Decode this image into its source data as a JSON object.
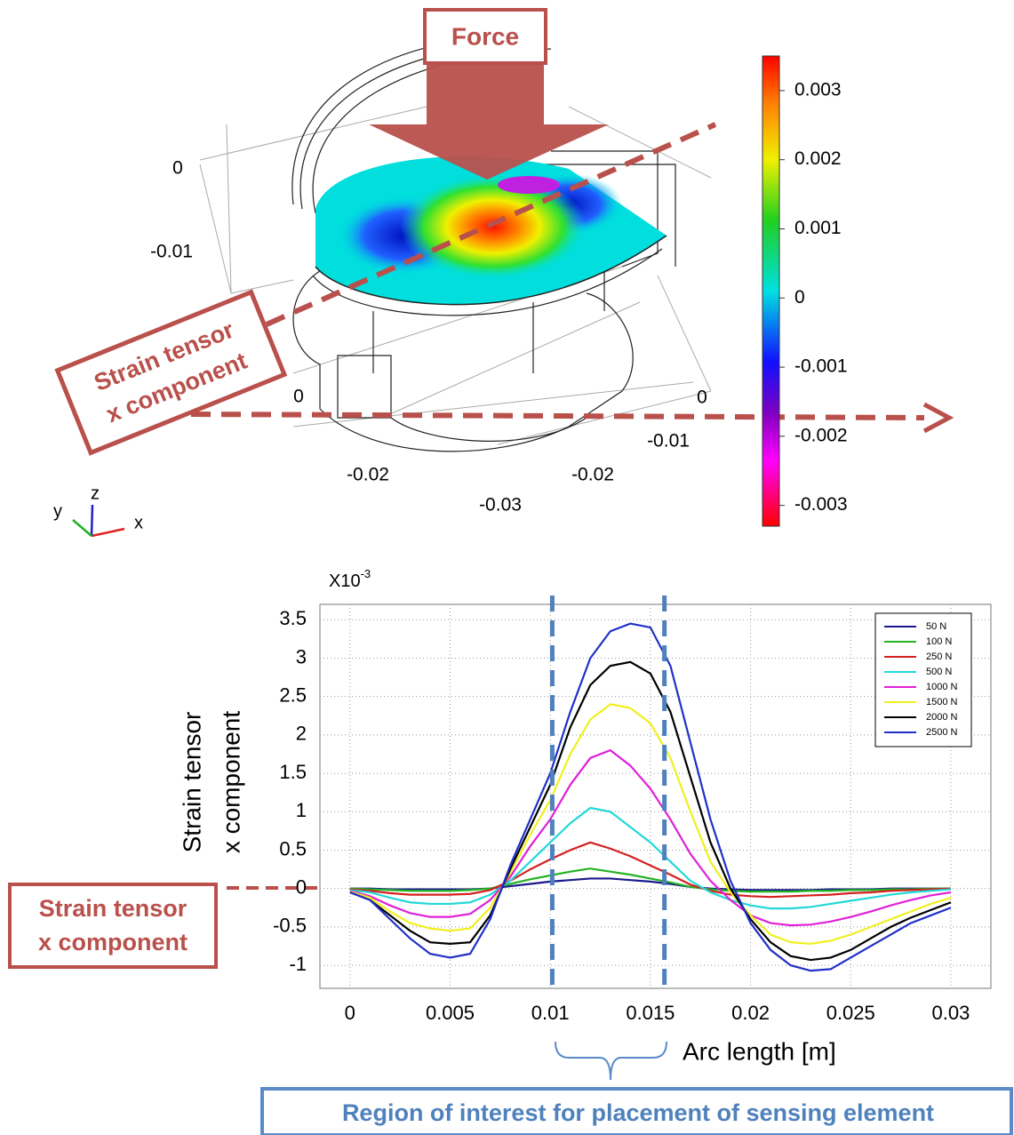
{
  "figure": {
    "force_label": "Force",
    "strain_annotation": [
      "Strain tensor",
      "x component"
    ],
    "axis_labels": [
      0,
      -0.01,
      0,
      -0.02,
      -0.03,
      -0.02,
      -0.01,
      0
    ],
    "triad": [
      "y",
      "z",
      "x"
    ],
    "colorbar": {
      "lim": [
        -0.0033,
        0.0035
      ],
      "ticks": [
        0.003,
        0.002,
        0.001,
        0,
        -0.001,
        -0.002,
        -0.003
      ]
    }
  },
  "chart_data": {
    "type": "line",
    "y_multiplier": {
      "base": "X10",
      "exponent": "-3"
    },
    "y_label": [
      "Strain tensor",
      "x component"
    ],
    "x_label": "Arc length [m]",
    "xlim": [
      -0.0015,
      0.032
    ],
    "ylim": [
      -1.3,
      3.7
    ],
    "xticks": [
      0,
      0.005,
      0.01,
      0.015,
      0.02,
      0.025,
      0.03
    ],
    "yticks": [
      -1,
      -0.5,
      0,
      0.5,
      1,
      1.5,
      2,
      2.5,
      3,
      3.5
    ],
    "grid": true,
    "legend": "upper right",
    "highlight_x": [
      0.0101,
      0.0157
    ],
    "annotation": [
      "Strain tensor",
      "x component"
    ],
    "region_label": "Region of interest for placement of sensing element",
    "x": [
      0,
      0.001,
      0.002,
      0.003,
      0.004,
      0.005,
      0.006,
      0.007,
      0.008,
      0.009,
      0.01,
      0.011,
      0.012,
      0.013,
      0.014,
      0.015,
      0.016,
      0.017,
      0.018,
      0.019,
      0.02,
      0.021,
      0.022,
      0.023,
      0.024,
      0.025,
      0.026,
      0.027,
      0.028,
      0.029,
      0.03
    ],
    "series": [
      {
        "name": "50 N",
        "color": "#1a1a8c",
        "values": [
          0,
          0,
          -0.01,
          -0.01,
          -0.01,
          -0.01,
          -0.01,
          0,
          0.03,
          0.06,
          0.09,
          0.11,
          0.13,
          0.13,
          0.11,
          0.09,
          0.06,
          0.02,
          0,
          -0.01,
          -0.02,
          -0.02,
          -0.02,
          -0.02,
          -0.01,
          -0.01,
          -0.01,
          0,
          0,
          0,
          0
        ]
      },
      {
        "name": "100 N",
        "color": "#22b422",
        "values": [
          0,
          -0.01,
          -0.02,
          -0.03,
          -0.03,
          -0.03,
          -0.02,
          0,
          0.06,
          0.12,
          0.17,
          0.22,
          0.26,
          0.22,
          0.18,
          0.13,
          0.08,
          0.02,
          -0.01,
          -0.03,
          -0.04,
          -0.04,
          -0.04,
          -0.03,
          -0.03,
          -0.02,
          -0.02,
          -0.01,
          -0.01,
          0,
          0
        ]
      },
      {
        "name": "250 N",
        "color": "#d42020",
        "values": [
          -0.01,
          -0.03,
          -0.06,
          -0.08,
          -0.08,
          -0.08,
          -0.07,
          -0.02,
          0.1,
          0.25,
          0.38,
          0.5,
          0.6,
          0.52,
          0.42,
          0.3,
          0.18,
          0.05,
          -0.03,
          -0.08,
          -0.1,
          -0.11,
          -0.1,
          -0.09,
          -0.08,
          -0.06,
          -0.05,
          -0.03,
          -0.02,
          -0.01,
          0
        ]
      },
      {
        "name": "500 N",
        "color": "#22d8d8",
        "values": [
          -0.02,
          -0.05,
          -0.12,
          -0.18,
          -0.2,
          -0.2,
          -0.18,
          -0.08,
          0.1,
          0.35,
          0.6,
          0.85,
          1.05,
          1.0,
          0.8,
          0.6,
          0.35,
          0.1,
          -0.05,
          -0.15,
          -0.22,
          -0.26,
          -0.26,
          -0.24,
          -0.2,
          -0.16,
          -0.12,
          -0.08,
          -0.05,
          -0.03,
          -0.01
        ]
      },
      {
        "name": "1000 N",
        "color": "#e020d8",
        "values": [
          -0.03,
          -0.1,
          -0.22,
          -0.32,
          -0.37,
          -0.37,
          -0.33,
          -0.15,
          0.15,
          0.55,
          0.9,
          1.35,
          1.7,
          1.8,
          1.6,
          1.3,
          0.9,
          0.45,
          0.1,
          -0.15,
          -0.35,
          -0.45,
          -0.48,
          -0.47,
          -0.43,
          -0.37,
          -0.3,
          -0.22,
          -0.15,
          -0.09,
          -0.05
        ]
      },
      {
        "name": "1500 N",
        "color": "#f0f020",
        "values": [
          -0.04,
          -0.12,
          -0.3,
          -0.45,
          -0.52,
          -0.55,
          -0.52,
          -0.25,
          0.2,
          0.7,
          1.15,
          1.75,
          2.2,
          2.4,
          2.35,
          2.15,
          1.7,
          1.0,
          0.35,
          -0.05,
          -0.35,
          -0.6,
          -0.7,
          -0.72,
          -0.68,
          -0.6,
          -0.5,
          -0.4,
          -0.3,
          -0.2,
          -0.12
        ]
      },
      {
        "name": "2000 N",
        "color": "#000000",
        "values": [
          -0.05,
          -0.15,
          -0.35,
          -0.55,
          -0.7,
          -0.72,
          -0.7,
          -0.35,
          0.25,
          0.8,
          1.35,
          2.1,
          2.65,
          2.9,
          2.95,
          2.8,
          2.3,
          1.45,
          0.6,
          0,
          -0.4,
          -0.7,
          -0.88,
          -0.93,
          -0.9,
          -0.8,
          -0.65,
          -0.5,
          -0.38,
          -0.28,
          -0.18
        ]
      },
      {
        "name": "2500 N",
        "color": "#2030c8",
        "values": [
          -0.05,
          -0.15,
          -0.4,
          -0.65,
          -0.85,
          -0.9,
          -0.85,
          -0.4,
          0.3,
          0.9,
          1.5,
          2.3,
          3.0,
          3.35,
          3.45,
          3.4,
          2.9,
          1.9,
          0.9,
          0.1,
          -0.45,
          -0.8,
          -1.0,
          -1.07,
          -1.05,
          -0.9,
          -0.75,
          -0.6,
          -0.45,
          -0.35,
          -0.25
        ]
      }
    ]
  }
}
